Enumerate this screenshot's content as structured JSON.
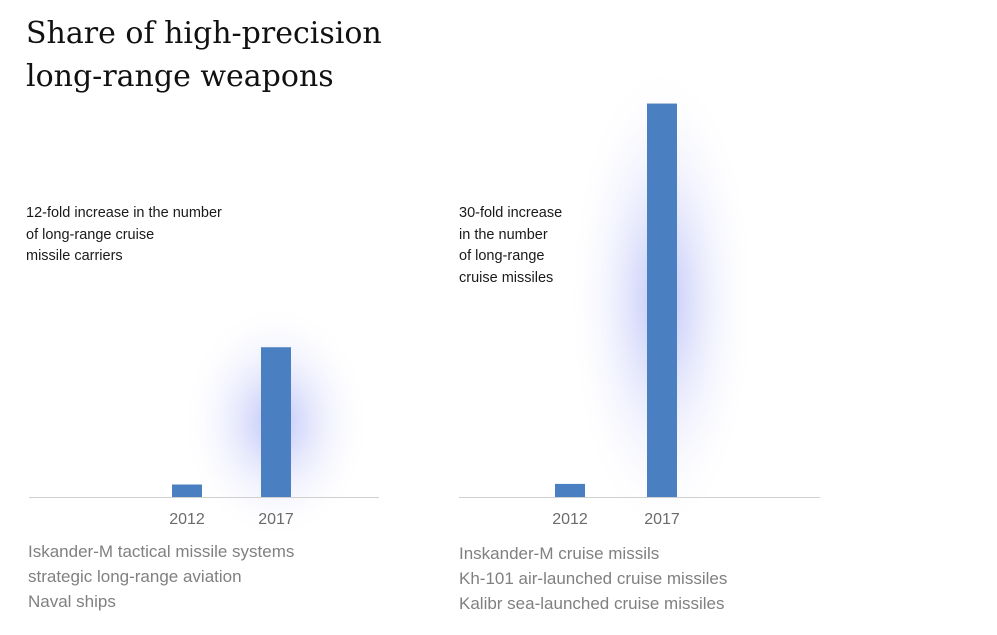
{
  "title_lines": [
    "Share of high-precision",
    "long-range weapons"
  ],
  "colors": {
    "bar": "#4a7fc1",
    "glow": "#6f7cf0",
    "axis": "#d0d0d0",
    "tick": "#6b6b6b",
    "caption": "#808080"
  },
  "chart_data": [
    {
      "type": "bar",
      "categories": [
        "2012",
        "2017"
      ],
      "values": [
        1,
        12
      ],
      "ylim": [
        0,
        12.5
      ],
      "annotation_lines": [
        "12-fold increase in the number",
        "of long-range cruise",
        "missile carriers"
      ],
      "caption_lines": [
        "Iskander-M tactical missile systems",
        "strategic long-range aviation",
        "Naval ships"
      ],
      "grid": false
    },
    {
      "type": "bar",
      "categories": [
        "2012",
        "2017"
      ],
      "values": [
        1,
        30
      ],
      "ylim": [
        0,
        30.5
      ],
      "annotation_lines": [
        "30-fold increase",
        "in the number",
        "of long-range",
        "cruise missiles"
      ],
      "caption_lines": [
        "Inskander-M cruise missils",
        "Kh-101 air-launched cruise missiles",
        "Kalibr sea-launched cruise missiles"
      ],
      "grid": false
    }
  ]
}
